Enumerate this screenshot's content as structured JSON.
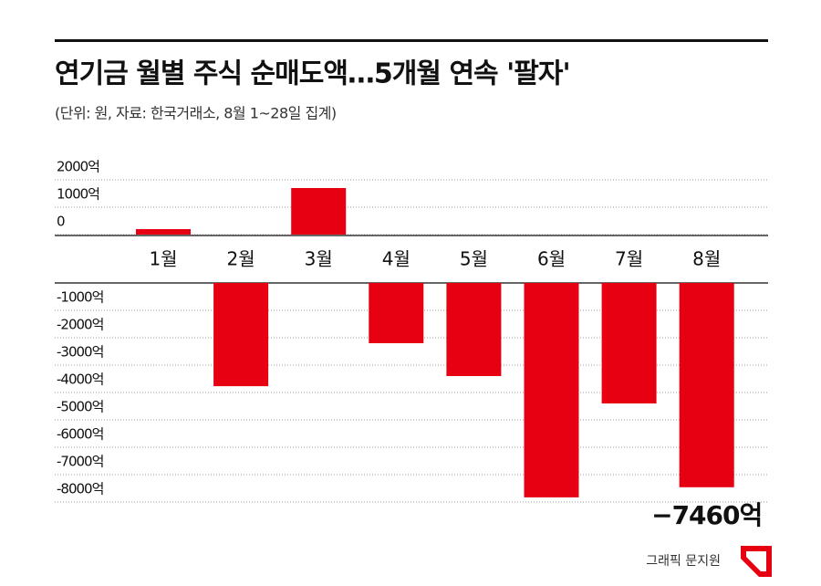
{
  "chart_data": {
    "type": "bar",
    "title": "연기금 월별 주식 순매도액…5개월 연속 '팔자'",
    "subtitle": "(단위: 원, 자료: 한국거래소, 8월 1~28일 집계)",
    "source": "그래픽 문지원",
    "categories": [
      "1월",
      "2월",
      "3월",
      "4월",
      "5월",
      "6월",
      "7월",
      "8월"
    ],
    "values": [
      200,
      -3770,
      1700,
      -2200,
      -3400,
      -7830,
      -4400,
      -7460
    ],
    "value_labels": [
      null,
      null,
      null,
      null,
      null,
      null,
      null,
      "−7460억"
    ],
    "color": "#e60012",
    "ylim": [
      -8000,
      2000
    ],
    "yticks": [
      {
        "value": 2000,
        "label": "2000억"
      },
      {
        "value": 1000,
        "label": "1000억"
      },
      0,
      {
        "value": -1000,
        "label": "-1000억"
      },
      {
        "value": -2000,
        "label": "-2000억"
      },
      {
        "value": -3000,
        "label": "-3000억"
      },
      {
        "value": -4000,
        "label": "-4000억"
      },
      {
        "value": -5000,
        "label": "-5000억"
      },
      {
        "value": -6000,
        "label": "-6000억"
      },
      {
        "value": -7000,
        "label": "-7000억"
      },
      {
        "value": -8000,
        "label": "-8000억"
      }
    ],
    "grid": true
  }
}
